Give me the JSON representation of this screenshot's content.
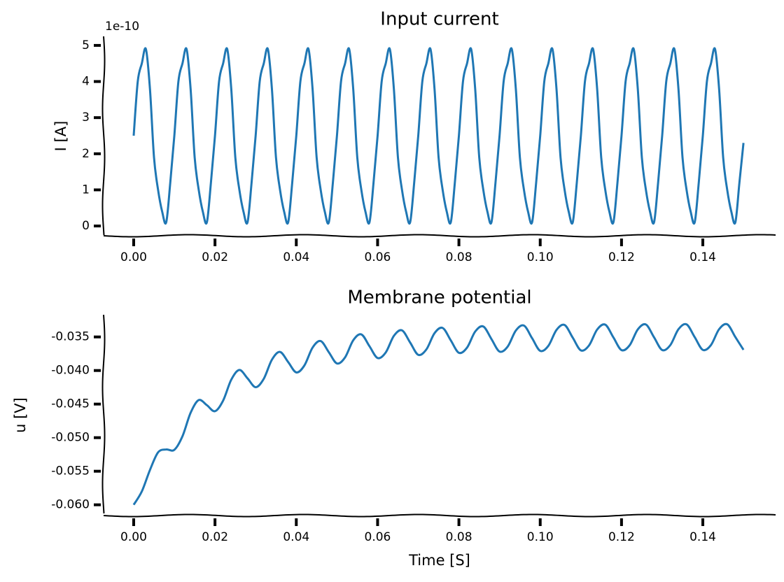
{
  "chart_data": [
    {
      "type": "line",
      "title": "Input current",
      "ylabel": "I [A]",
      "y_offset_text": "1e-10",
      "color": "#1f77b4",
      "x": [
        0,
        0.001,
        0.002,
        0.003,
        0.004,
        0.005,
        0.006,
        0.007,
        0.008,
        0.009,
        0.01,
        0.011,
        0.012,
        0.013,
        0.014,
        0.015,
        0.016,
        0.017,
        0.018,
        0.019,
        0.02,
        0.021,
        0.022,
        0.023,
        0.024,
        0.025,
        0.026,
        0.027,
        0.028,
        0.029,
        0.03,
        0.031,
        0.032,
        0.033,
        0.034,
        0.035,
        0.036,
        0.037,
        0.038,
        0.039,
        0.04,
        0.041,
        0.042,
        0.043,
        0.044,
        0.045,
        0.046,
        0.047,
        0.048,
        0.049,
        0.05,
        0.051,
        0.052,
        0.053,
        0.054,
        0.055,
        0.056,
        0.057,
        0.058,
        0.059,
        0.06,
        0.061,
        0.062,
        0.063,
        0.064,
        0.065,
        0.066,
        0.067,
        0.068,
        0.069,
        0.07,
        0.071,
        0.072,
        0.073,
        0.074,
        0.075,
        0.076,
        0.077,
        0.078,
        0.079,
        0.08,
        0.081,
        0.082,
        0.083,
        0.084,
        0.085,
        0.086,
        0.087,
        0.088,
        0.089,
        0.09,
        0.091,
        0.092,
        0.093,
        0.094,
        0.095,
        0.096,
        0.097,
        0.098,
        0.099,
        0.1,
        0.101,
        0.102,
        0.103,
        0.104,
        0.105,
        0.106,
        0.107,
        0.108,
        0.109,
        0.11,
        0.111,
        0.112,
        0.113,
        0.114,
        0.115,
        0.116,
        0.117,
        0.118,
        0.119,
        0.12,
        0.121,
        0.122,
        0.123,
        0.124,
        0.125,
        0.126,
        0.127,
        0.128,
        0.129,
        0.13,
        0.131,
        0.132,
        0.133,
        0.134,
        0.135,
        0.136,
        0.137,
        0.138,
        0.139,
        0.14,
        0.141,
        0.142,
        0.143,
        0.144,
        0.145,
        0.146,
        0.147,
        0.148,
        0.149,
        0.15
      ],
      "values": [
        2.5,
        4.0,
        4.5,
        4.9,
        3.8,
        1.9,
        1.0,
        0.4,
        0.1,
        1.2,
        2.5,
        4.0,
        4.5,
        4.9,
        3.8,
        1.9,
        1.0,
        0.4,
        0.1,
        1.2,
        2.5,
        4.0,
        4.5,
        4.9,
        3.8,
        1.9,
        1.0,
        0.4,
        0.1,
        1.2,
        2.5,
        4.0,
        4.5,
        4.9,
        3.8,
        1.9,
        1.0,
        0.4,
        0.1,
        1.2,
        2.5,
        4.0,
        4.5,
        4.9,
        3.8,
        1.9,
        1.0,
        0.4,
        0.1,
        1.2,
        2.5,
        4.0,
        4.5,
        4.9,
        3.8,
        1.9,
        1.0,
        0.4,
        0.1,
        1.2,
        2.5,
        4.0,
        4.5,
        4.9,
        3.8,
        1.9,
        1.0,
        0.4,
        0.1,
        1.2,
        2.5,
        4.0,
        4.5,
        4.9,
        3.8,
        1.9,
        1.0,
        0.4,
        0.1,
        1.2,
        2.5,
        4.0,
        4.5,
        4.9,
        3.8,
        1.9,
        1.0,
        0.4,
        0.1,
        1.2,
        2.5,
        4.0,
        4.5,
        4.9,
        3.8,
        1.9,
        1.0,
        0.4,
        0.1,
        1.2,
        2.5,
        4.0,
        4.5,
        4.9,
        3.8,
        1.9,
        1.0,
        0.4,
        0.1,
        1.2,
        2.5,
        4.0,
        4.5,
        4.9,
        3.8,
        1.9,
        1.0,
        0.4,
        0.1,
        1.2,
        2.5,
        4.0,
        4.5,
        4.9,
        3.8,
        1.9,
        1.0,
        0.4,
        0.1,
        1.2,
        2.5,
        4.0,
        4.5,
        4.9,
        3.8,
        1.9,
        1.0,
        0.4,
        0.1,
        1.2,
        2.5,
        4.0,
        4.5,
        4.9,
        3.8,
        1.9,
        1.0,
        0.4,
        0.1,
        1.2,
        2.3
      ],
      "xlim": [
        -0.0074,
        0.1579
      ],
      "xticks": [
        {
          "value": 0,
          "label": "0.00"
        },
        0.02,
        0.04,
        0.06,
        0.08,
        {
          "value": 0.1,
          "label": "0.10"
        },
        0.12,
        0.14
      ],
      "ylim": [
        -0.27,
        5.25
      ],
      "yticks": [
        0,
        1,
        2,
        3,
        4,
        5
      ]
    },
    {
      "type": "line",
      "title": "Membrane potential",
      "ylabel": "u [V]",
      "xlabel": "Time [S]",
      "color": "#1f77b4",
      "x": [
        0,
        0.002,
        0.004,
        0.006,
        0.008,
        0.01,
        0.012,
        0.014,
        0.016,
        0.018,
        0.02,
        0.022,
        0.024,
        0.026,
        0.028,
        0.03,
        0.032,
        0.034,
        0.036,
        0.038,
        0.04,
        0.042,
        0.044,
        0.046,
        0.048,
        0.05,
        0.052,
        0.054,
        0.056,
        0.058,
        0.06,
        0.062,
        0.064,
        0.066,
        0.068,
        0.07,
        0.072,
        0.074,
        0.076,
        0.078,
        0.08,
        0.082,
        0.084,
        0.086,
        0.088,
        0.09,
        0.092,
        0.094,
        0.096,
        0.098,
        0.1,
        0.102,
        0.104,
        0.106,
        0.108,
        0.11,
        0.112,
        0.114,
        0.116,
        0.118,
        0.12,
        0.122,
        0.124,
        0.126,
        0.128,
        0.13,
        0.132,
        0.134,
        0.136,
        0.138,
        0.14,
        0.142,
        0.144,
        0.146,
        0.148,
        0.15
      ],
      "values": [
        -0.06,
        -0.05801,
        -0.05482,
        -0.05219,
        -0.05176,
        -0.05181,
        -0.04979,
        -0.0463,
        -0.0444,
        -0.04516,
        -0.04606,
        -0.04448,
        -0.04137,
        -0.03992,
        -0.04116,
        -0.04248,
        -0.04123,
        -0.03839,
        -0.03723,
        -0.03874,
        -0.04028,
        -0.03924,
        -0.03659,
        -0.03561,
        -0.03727,
        -0.03895,
        -0.03804,
        -0.0355,
        -0.03462,
        -0.03638,
        -0.03814,
        -0.03731,
        -0.03484,
        -0.03402,
        -0.03583,
        -0.03766,
        -0.03686,
        -0.03444,
        -0.03366,
        -0.03551,
        -0.03736,
        -0.03659,
        -0.0342,
        -0.03344,
        -0.03531,
        -0.03718,
        -0.03643,
        -0.03405,
        -0.03331,
        -0.03519,
        -0.03707,
        -0.03633,
        -0.03396,
        -0.03322,
        -0.03511,
        -0.037,
        -0.03627,
        -0.0339,
        -0.03317,
        -0.03507,
        -0.03696,
        -0.03624,
        -0.03388,
        -0.03315,
        -0.03505,
        -0.03695,
        -0.03622,
        -0.03386,
        -0.03313,
        -0.03503,
        -0.03693,
        -0.03621,
        -0.03385,
        -0.03312,
        -0.03502,
        -0.03692
      ],
      "xlim": [
        -0.0074,
        0.1579
      ],
      "xticks": [
        {
          "value": 0,
          "label": "0.00"
        },
        0.02,
        0.04,
        0.06,
        0.08,
        {
          "value": 0.1,
          "label": "0.10"
        },
        0.12,
        0.14
      ],
      "ylim": [
        -0.0616,
        -0.0317
      ],
      "yticks": [
        -0.035,
        {
          "value": -0.04,
          "label": "-0.040"
        },
        -0.045,
        {
          "value": -0.05,
          "label": "-0.050"
        },
        -0.055,
        {
          "value": -0.06,
          "label": "-0.060"
        }
      ]
    }
  ]
}
